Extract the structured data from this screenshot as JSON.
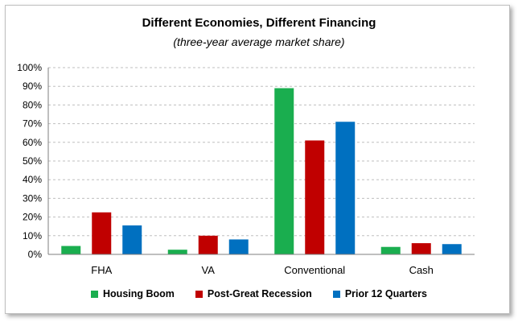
{
  "chart_data": {
    "type": "bar",
    "title": "Different Economies, Different Financing",
    "subtitle": "(three-year average market share)",
    "categories": [
      "FHA",
      "VA",
      "Conventional",
      "Cash"
    ],
    "series": [
      {
        "name": "Housing Boom",
        "color": "#1aae4f",
        "values": [
          4.5,
          2.5,
          89,
          4
        ]
      },
      {
        "name": "Post-Great Recession",
        "color": "#c00000",
        "values": [
          22.5,
          10,
          61,
          6
        ]
      },
      {
        "name": "Prior 12 Quarters",
        "color": "#0070c0",
        "values": [
          15.5,
          8,
          71,
          5.5
        ]
      }
    ],
    "ylim": [
      0,
      100
    ],
    "yticks": [
      "0%",
      "10%",
      "20%",
      "30%",
      "40%",
      "50%",
      "60%",
      "70%",
      "80%",
      "90%",
      "100%"
    ],
    "grid": true,
    "legend_position": "bottom"
  }
}
